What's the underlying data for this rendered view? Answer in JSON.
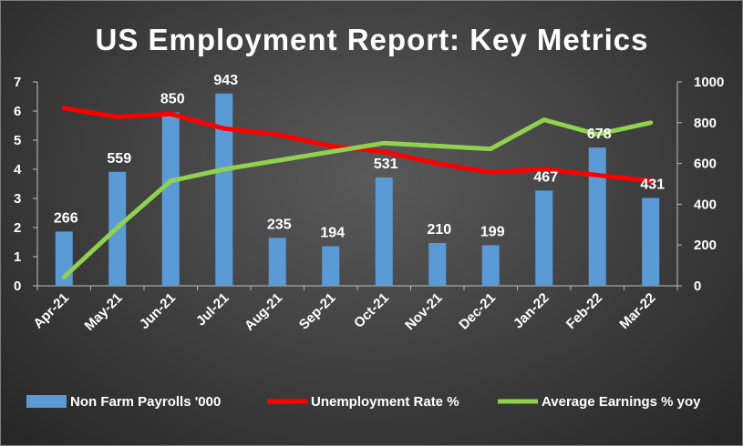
{
  "chart_data": {
    "type": "bar",
    "title": "US Employment Report: Key Metrics",
    "categories": [
      "Apr-21",
      "May-21",
      "Jun-21",
      "Jul-21",
      "Aug-21",
      "Sep-21",
      "Oct-21",
      "Nov-21",
      "Dec-21",
      "Jan-22",
      "Feb-22",
      "Mar-22"
    ],
    "left_axis": {
      "ylim": [
        0,
        7
      ],
      "ticks": [
        "0",
        "1",
        "2",
        "3",
        "4",
        "5",
        "6",
        "7"
      ]
    },
    "right_axis": {
      "ylim": [
        0,
        1000
      ],
      "ticks": [
        "0",
        "200",
        "400",
        "600",
        "800",
        "1000"
      ]
    },
    "grid": false,
    "legend_position": "bottom",
    "series": [
      {
        "name": "Non Farm Payrolls '000",
        "type": "bar",
        "axis": "right",
        "color": "#5b9bd5",
        "values": [
          266,
          559,
          850,
          943,
          235,
          194,
          531,
          210,
          199,
          467,
          678,
          431
        ],
        "data_labels": [
          "266",
          "559",
          "850",
          "943",
          "235",
          "194",
          "531",
          "210",
          "199",
          "467",
          "678",
          "431"
        ]
      },
      {
        "name": "Unemployment Rate %",
        "type": "line",
        "axis": "left",
        "color": "#ff0000",
        "values": [
          6.1,
          5.8,
          5.9,
          5.4,
          5.2,
          4.8,
          4.6,
          4.2,
          3.9,
          4.0,
          3.8,
          3.6
        ]
      },
      {
        "name": "Average Earnings % yoy",
        "type": "line",
        "axis": "left",
        "color": "#92d050",
        "values": [
          0.3,
          2.0,
          3.6,
          4.0,
          4.3,
          4.6,
          4.9,
          4.8,
          4.7,
          5.7,
          5.2,
          5.6
        ]
      }
    ]
  }
}
